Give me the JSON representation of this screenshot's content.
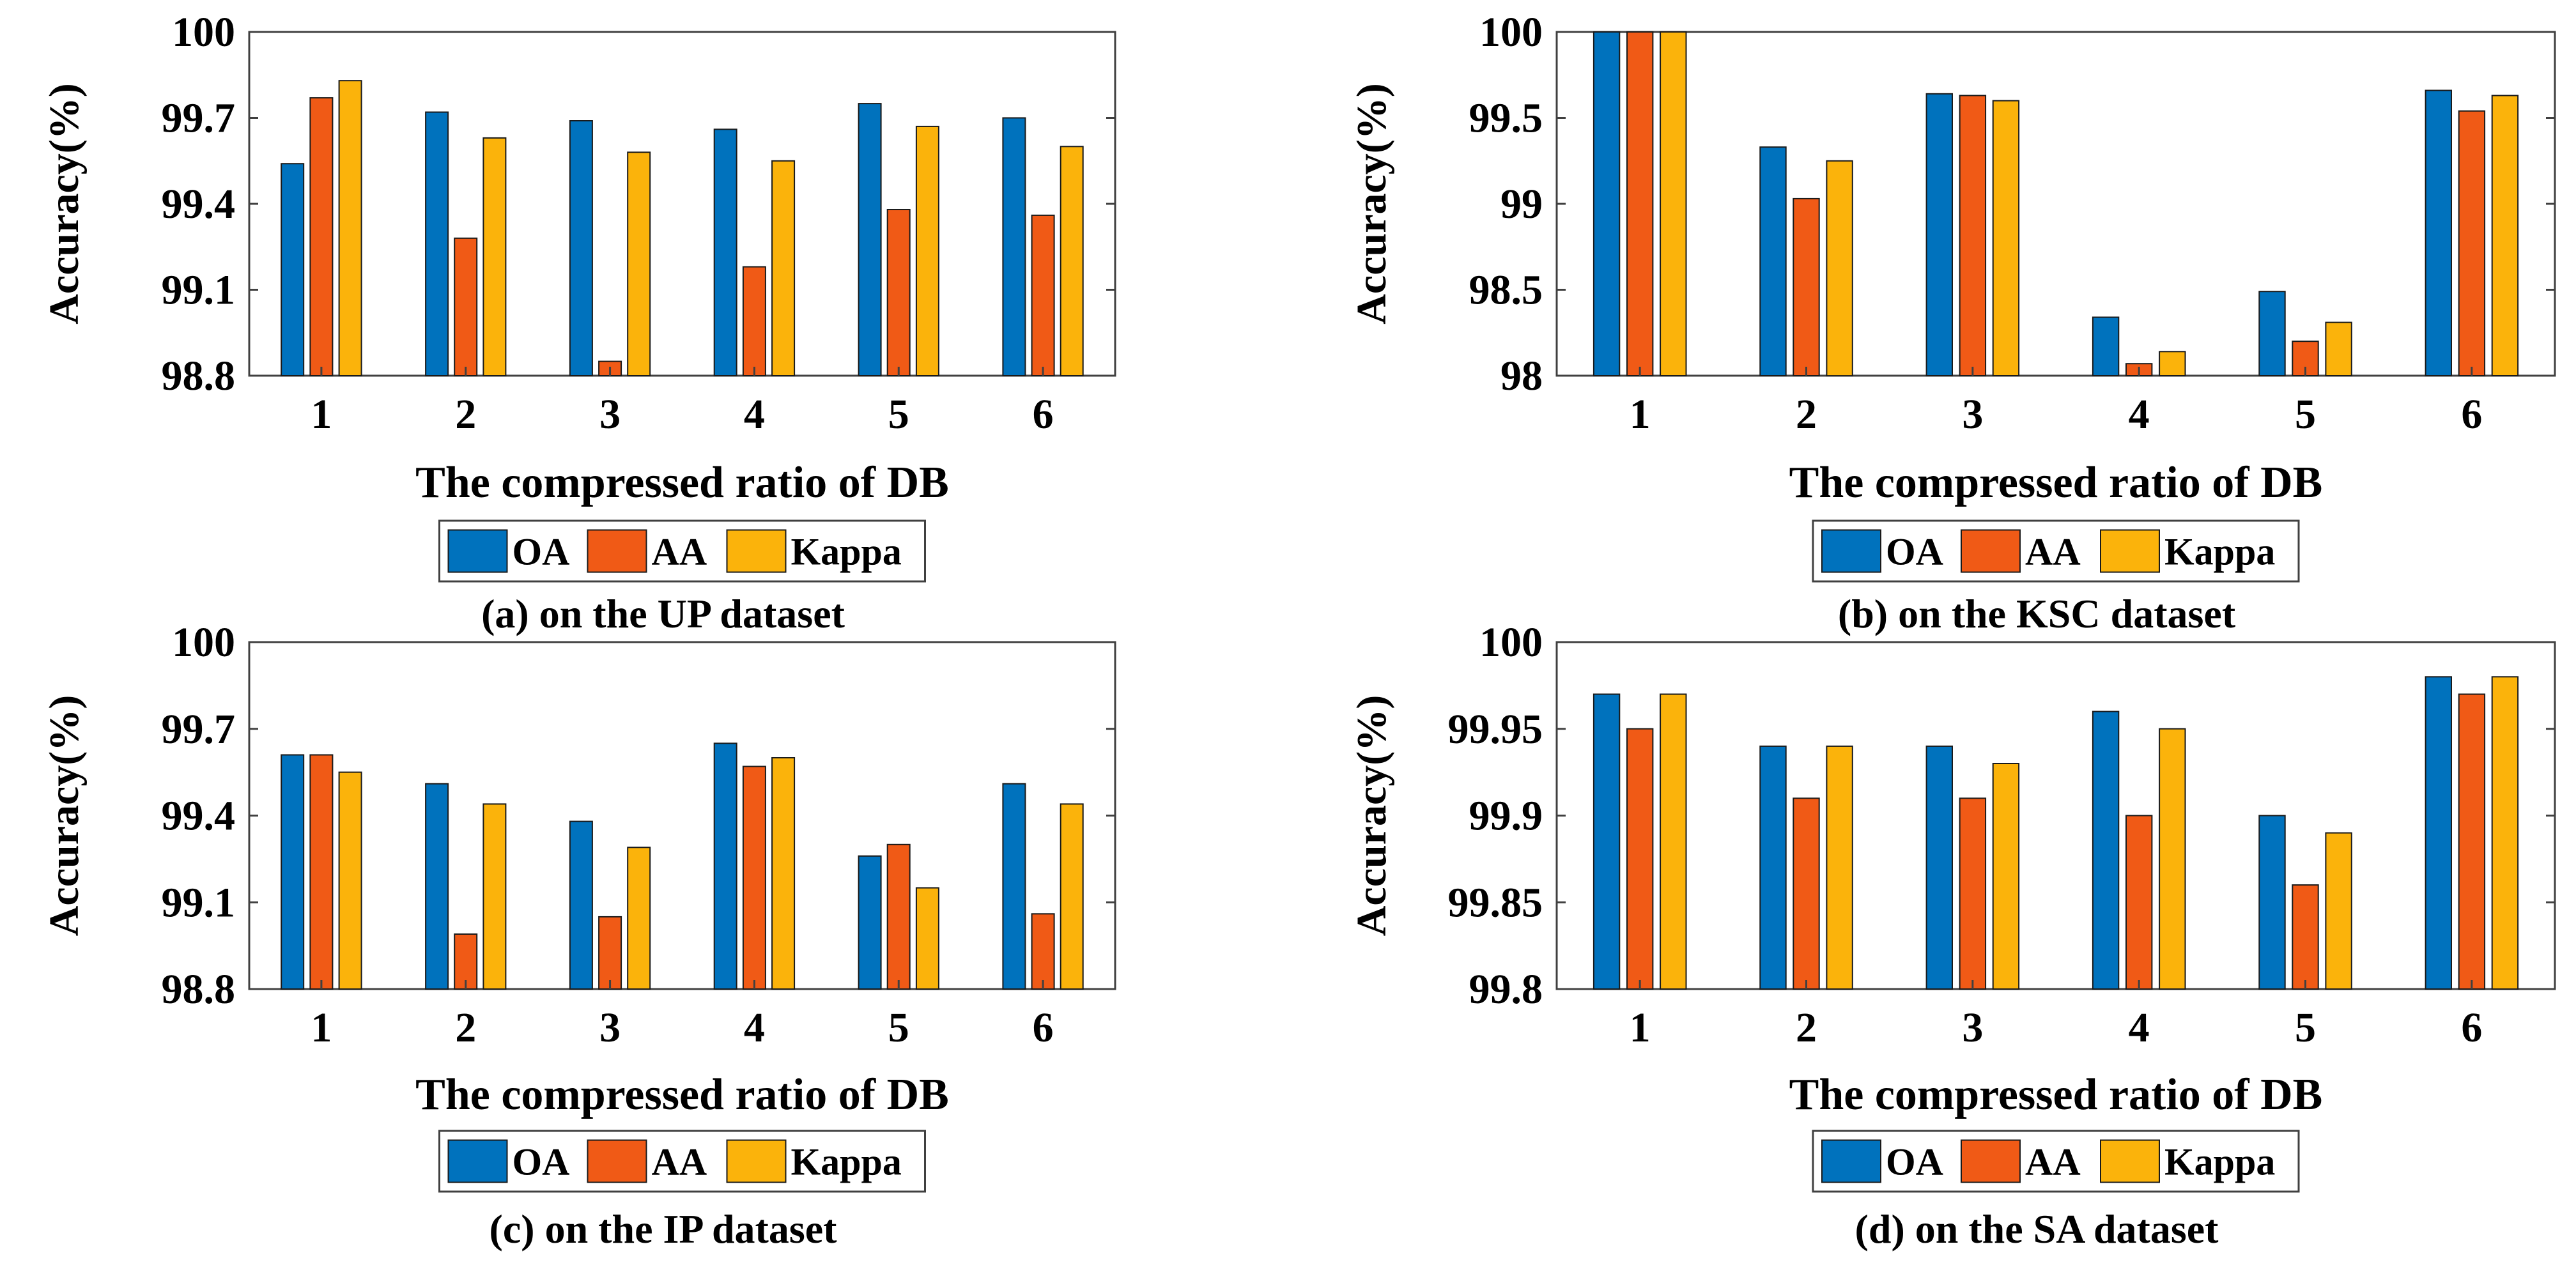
{
  "colors": {
    "OA": "#0072bd",
    "AA": "#f05a16",
    "Kappa": "#fbb30b",
    "axis": "#404040",
    "bar_edge": "#1a1a1a"
  },
  "chart_data": [
    {
      "type": "bar",
      "title": "",
      "caption": "(a) on the UP dataset",
      "xlabel": "The compressed ratio of DB",
      "ylabel": "Accuracy(%)",
      "categories": [
        "1",
        "2",
        "3",
        "4",
        "5",
        "6"
      ],
      "ylim": [
        98.8,
        100
      ],
      "yticks": [
        "98.8",
        "99.1",
        "99.4",
        "99.7",
        "100"
      ],
      "ytick_values": [
        98.8,
        99.1,
        99.4,
        99.7,
        100
      ],
      "grid": false,
      "legend_position": "bottom-center",
      "series": [
        {
          "name": "OA",
          "values": [
            99.54,
            99.72,
            99.69,
            99.66,
            99.75,
            99.7
          ]
        },
        {
          "name": "AA",
          "values": [
            99.77,
            99.28,
            98.85,
            99.18,
            99.38,
            99.36
          ]
        },
        {
          "name": "Kappa",
          "values": [
            99.83,
            99.63,
            99.58,
            99.55,
            99.67,
            99.6
          ]
        }
      ]
    },
    {
      "type": "bar",
      "title": "",
      "caption": "(b) on the KSC dataset",
      "xlabel": "The compressed ratio of DB",
      "ylabel": "Accuracy(%)",
      "categories": [
        "1",
        "2",
        "3",
        "4",
        "5",
        "6"
      ],
      "ylim": [
        98,
        100
      ],
      "yticks": [
        "98",
        "98.5",
        "99",
        "99.5",
        "100"
      ],
      "ytick_values": [
        98,
        98.5,
        99,
        99.5,
        100
      ],
      "grid": false,
      "legend_position": "bottom-center",
      "series": [
        {
          "name": "OA",
          "values": [
            100,
            99.33,
            99.64,
            98.34,
            98.49,
            99.66
          ]
        },
        {
          "name": "AA",
          "values": [
            100,
            99.03,
            99.63,
            98.07,
            98.2,
            99.54
          ]
        },
        {
          "name": "Kappa",
          "values": [
            100,
            99.25,
            99.6,
            98.14,
            98.31,
            99.63
          ]
        }
      ]
    },
    {
      "type": "bar",
      "title": "",
      "caption": "(c) on the IP dataset",
      "xlabel": "The compressed ratio of DB",
      "ylabel": "Accuracy(%)",
      "categories": [
        "1",
        "2",
        "3",
        "4",
        "5",
        "6"
      ],
      "ylim": [
        98.8,
        100
      ],
      "yticks": [
        "98.8",
        "99.1",
        "99.4",
        "99.7",
        "100"
      ],
      "ytick_values": [
        98.8,
        99.1,
        99.4,
        99.7,
        100
      ],
      "grid": false,
      "legend_position": "bottom-center",
      "series": [
        {
          "name": "OA",
          "values": [
            99.61,
            99.51,
            99.38,
            99.65,
            99.26,
            99.51
          ]
        },
        {
          "name": "AA",
          "values": [
            99.61,
            98.99,
            99.05,
            99.57,
            99.3,
            99.06
          ]
        },
        {
          "name": "Kappa",
          "values": [
            99.55,
            99.44,
            99.29,
            99.6,
            99.15,
            99.44
          ]
        }
      ]
    },
    {
      "type": "bar",
      "title": "",
      "caption": "(d) on the SA dataset",
      "xlabel": "The compressed ratio of DB",
      "ylabel": "Accuracy(%)",
      "categories": [
        "1",
        "2",
        "3",
        "4",
        "5",
        "6"
      ],
      "ylim": [
        99.8,
        100
      ],
      "yticks": [
        "99.8",
        "99.85",
        "99.9",
        "99.95",
        "100"
      ],
      "ytick_values": [
        99.8,
        99.85,
        99.9,
        99.95,
        100
      ],
      "grid": false,
      "legend_position": "bottom-center",
      "series": [
        {
          "name": "OA",
          "values": [
            99.97,
            99.94,
            99.94,
            99.96,
            99.9,
            99.98
          ]
        },
        {
          "name": "AA",
          "values": [
            99.95,
            99.91,
            99.91,
            99.9,
            99.86,
            99.97
          ]
        },
        {
          "name": "Kappa",
          "values": [
            99.97,
            99.94,
            99.93,
            99.95,
            99.89,
            99.98
          ]
        }
      ]
    }
  ]
}
